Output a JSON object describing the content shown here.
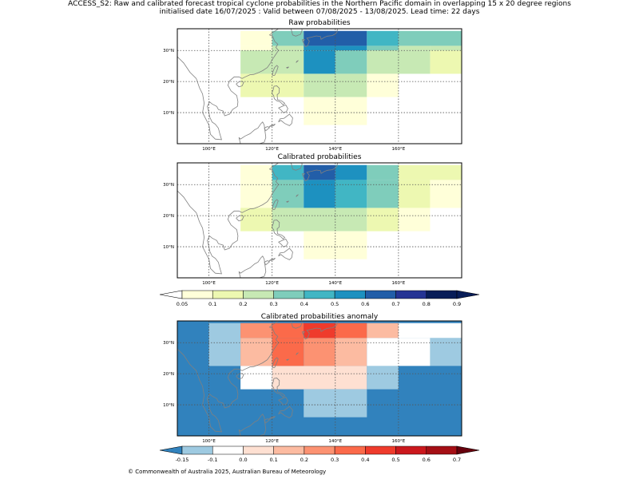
{
  "header": {
    "title_line1": "ACCESS_S2: Raw and calibrated forecast tropical cyclone probabilities in the Northern Pacific domain in overlapping 15 x 20 degree regions",
    "title_line2": "initialised date 16/07/2025 :  Valid between 07/08/2025 - 13/08/2025. Lead time: 22 days"
  },
  "footer": {
    "copyright": "© Commonwealth of Australia 2025, Australian Bureau of Meteorology"
  },
  "colors": {
    "prob_scale": [
      "#ffffff",
      "#ffffd9",
      "#edf8b1",
      "#c7e9b4",
      "#7fcdbb",
      "#41b6c4",
      "#1d91c0",
      "#225ea8",
      "#253494",
      "#081d58"
    ],
    "anom_scale": [
      "#3182bd",
      "#9ecae1",
      "#ffffff",
      "#fee0d2",
      "#fcbba1",
      "#fc9272",
      "#fb6a4a",
      "#ef3b2c",
      "#cb181d",
      "#a50f15",
      "#67000d"
    ],
    "coast": "#808080",
    "grid": "#555555"
  },
  "chart_data": [
    {
      "type": "heatmap",
      "title": "Raw probabilities",
      "x_ticks": [
        "100°E",
        "120°E",
        "140°E",
        "160°E"
      ],
      "y_ticks": [
        "30°N",
        "20°N",
        "10°N"
      ],
      "lon_range": [
        90,
        180
      ],
      "lat_range": [
        0,
        37
      ],
      "grid": true,
      "cells": [
        {
          "lon0": 110,
          "lon1": 120,
          "lat0": 36.3,
          "lat1": 31.5,
          "value": 0.07
        },
        {
          "lon0": 120,
          "lon1": 130,
          "lat0": 36.3,
          "lat1": 31.5,
          "value": 0.35
        },
        {
          "lon0": 130,
          "lon1": 150,
          "lat0": 36.3,
          "lat1": 31.5,
          "value": 0.65
        },
        {
          "lon0": 150,
          "lon1": 160,
          "lat0": 36.3,
          "lat1": 31.5,
          "value": 0.45
        },
        {
          "lon0": 160,
          "lon1": 180,
          "lat0": 36.3,
          "lat1": 31.5,
          "value": 0.35
        },
        {
          "lon0": 110,
          "lon1": 120,
          "lat0": 31.5,
          "lat1": 30.0,
          "value": 0.07
        },
        {
          "lon0": 120,
          "lon1": 130,
          "lat0": 31.5,
          "lat1": 30.0,
          "value": 0.25
        },
        {
          "lon0": 130,
          "lon1": 150,
          "lat0": 31.5,
          "lat1": 30.0,
          "value": 0.55
        },
        {
          "lon0": 150,
          "lon1": 160,
          "lat0": 31.5,
          "lat1": 30.0,
          "value": 0.35
        },
        {
          "lon0": 160,
          "lon1": 170,
          "lat0": 31.5,
          "lat1": 30.0,
          "value": 0.25
        },
        {
          "lon0": 170,
          "lon1": 180,
          "lat0": 31.5,
          "lat1": 30.0,
          "value": 0.25
        },
        {
          "lon0": 110,
          "lon1": 120,
          "lat0": 30.0,
          "lat1": 22.5,
          "value": 0.25
        },
        {
          "lon0": 120,
          "lon1": 130,
          "lat0": 30.0,
          "lat1": 22.5,
          "value": 0.25
        },
        {
          "lon0": 130,
          "lon1": 140,
          "lat0": 30.0,
          "lat1": 22.5,
          "value": 0.55
        },
        {
          "lon0": 140,
          "lon1": 150,
          "lat0": 30.0,
          "lat1": 22.5,
          "value": 0.35
        },
        {
          "lon0": 150,
          "lon1": 170,
          "lat0": 30.0,
          "lat1": 22.5,
          "value": 0.25
        },
        {
          "lon0": 170,
          "lon1": 180,
          "lat0": 30.0,
          "lat1": 22.5,
          "value": 0.15
        },
        {
          "lon0": 110,
          "lon1": 130,
          "lat0": 22.5,
          "lat1": 15.0,
          "value": 0.15
        },
        {
          "lon0": 130,
          "lon1": 150,
          "lat0": 22.5,
          "lat1": 15.0,
          "value": 0.25
        },
        {
          "lon0": 150,
          "lon1": 160,
          "lat0": 22.5,
          "lat1": 15.0,
          "value": 0.07
        },
        {
          "lon0": 130,
          "lon1": 150,
          "lat0": 15.0,
          "lat1": 6.0,
          "value": 0.07
        }
      ]
    },
    {
      "type": "heatmap",
      "title": "Calibrated probabilities",
      "x_ticks": [
        "100°E",
        "120°E",
        "140°E",
        "160°E"
      ],
      "y_ticks": [
        "30°N",
        "20°N",
        "10°N"
      ],
      "lon_range": [
        90,
        180
      ],
      "lat_range": [
        0,
        37
      ],
      "grid": true,
      "cells": [
        {
          "lon0": 110,
          "lon1": 120,
          "lat0": 36.3,
          "lat1": 31.5,
          "value": 0.07
        },
        {
          "lon0": 120,
          "lon1": 130,
          "lat0": 36.3,
          "lat1": 31.5,
          "value": 0.45
        },
        {
          "lon0": 130,
          "lon1": 140,
          "lat0": 36.3,
          "lat1": 31.5,
          "value": 0.65
        },
        {
          "lon0": 140,
          "lon1": 150,
          "lat0": 36.3,
          "lat1": 31.5,
          "value": 0.55
        },
        {
          "lon0": 150,
          "lon1": 160,
          "lat0": 36.3,
          "lat1": 31.5,
          "value": 0.35
        },
        {
          "lon0": 160,
          "lon1": 180,
          "lat0": 36.3,
          "lat1": 31.5,
          "value": 0.15
        },
        {
          "lon0": 110,
          "lon1": 120,
          "lat0": 31.5,
          "lat1": 22.5,
          "value": 0.07
        },
        {
          "lon0": 120,
          "lon1": 130,
          "lat0": 31.5,
          "lat1": 22.5,
          "value": 0.35
        },
        {
          "lon0": 130,
          "lon1": 140,
          "lat0": 31.5,
          "lat1": 22.5,
          "value": 0.55
        },
        {
          "lon0": 140,
          "lon1": 150,
          "lat0": 31.5,
          "lat1": 22.5,
          "value": 0.45
        },
        {
          "lon0": 150,
          "lon1": 160,
          "lat0": 31.5,
          "lat1": 22.5,
          "value": 0.35
        },
        {
          "lon0": 160,
          "lon1": 170,
          "lat0": 31.5,
          "lat1": 22.5,
          "value": 0.15
        },
        {
          "lon0": 170,
          "lon1": 180,
          "lat0": 31.5,
          "lat1": 22.5,
          "value": 0.07
        },
        {
          "lon0": 110,
          "lon1": 120,
          "lat0": 22.5,
          "lat1": 15.0,
          "value": 0.15
        },
        {
          "lon0": 120,
          "lon1": 150,
          "lat0": 22.5,
          "lat1": 15.0,
          "value": 0.25
        },
        {
          "lon0": 150,
          "lon1": 160,
          "lat0": 22.5,
          "lat1": 15.0,
          "value": 0.15
        },
        {
          "lon0": 160,
          "lon1": 170,
          "lat0": 22.5,
          "lat1": 15.0,
          "value": 0.07
        },
        {
          "lon0": 130,
          "lon1": 150,
          "lat0": 15.0,
          "lat1": 6.0,
          "value": 0.07
        }
      ]
    },
    {
      "type": "heatmap",
      "title": "Calibrated probabilities anomaly",
      "x_ticks": [
        "100°E",
        "120°E",
        "140°E",
        "160°E"
      ],
      "y_ticks": [
        "30°N",
        "20°N",
        "10°N"
      ],
      "lon_range": [
        90,
        180
      ],
      "lat_range": [
        0,
        37
      ],
      "grid": true,
      "background_value": -0.2,
      "cells": [
        {
          "lon0": 100,
          "lon1": 110,
          "lat0": 36.3,
          "lat1": 22.5,
          "value": -0.1
        },
        {
          "lon0": 110,
          "lon1": 120,
          "lat0": 36.3,
          "lat1": 31.5,
          "value": 0.25
        },
        {
          "lon0": 120,
          "lon1": 130,
          "lat0": 36.3,
          "lat1": 31.5,
          "value": 0.35
        },
        {
          "lon0": 130,
          "lon1": 140,
          "lat0": 36.3,
          "lat1": 31.5,
          "value": 0.45
        },
        {
          "lon0": 140,
          "lon1": 150,
          "lat0": 36.3,
          "lat1": 31.5,
          "value": 0.35
        },
        {
          "lon0": 150,
          "lon1": 160,
          "lat0": 36.3,
          "lat1": 31.5,
          "value": 0.15
        },
        {
          "lon0": 160,
          "lon1": 180,
          "lat0": 36.3,
          "lat1": 31.5,
          "value": 0.0
        },
        {
          "lon0": 110,
          "lon1": 120,
          "lat0": 31.5,
          "lat1": 22.5,
          "value": 0.15
        },
        {
          "lon0": 120,
          "lon1": 130,
          "lat0": 31.5,
          "lat1": 22.5,
          "value": 0.35
        },
        {
          "lon0": 130,
          "lon1": 140,
          "lat0": 31.5,
          "lat1": 22.5,
          "value": 0.25
        },
        {
          "lon0": 140,
          "lon1": 150,
          "lat0": 31.5,
          "lat1": 22.5,
          "value": 0.15
        },
        {
          "lon0": 150,
          "lon1": 170,
          "lat0": 31.5,
          "lat1": 22.5,
          "value": 0.0
        },
        {
          "lon0": 170,
          "lon1": 180,
          "lat0": 31.5,
          "lat1": 22.5,
          "value": -0.1
        },
        {
          "lon0": 110,
          "lon1": 120,
          "lat0": 22.5,
          "lat1": 15.0,
          "value": 0.0
        },
        {
          "lon0": 120,
          "lon1": 150,
          "lat0": 22.5,
          "lat1": 15.0,
          "value": 0.05
        },
        {
          "lon0": 150,
          "lon1": 160,
          "lat0": 22.5,
          "lat1": 15.0,
          "value": -0.1
        },
        {
          "lon0": 160,
          "lon1": 180,
          "lat0": 22.5,
          "lat1": 15.0,
          "value": -0.2
        },
        {
          "lon0": 130,
          "lon1": 150,
          "lat0": 15.0,
          "lat1": 6.0,
          "value": -0.1
        }
      ]
    }
  ],
  "colorbar_prob": {
    "ticks": [
      "0.05",
      "0.1",
      "0.2",
      "0.3",
      "0.4",
      "0.5",
      "0.6",
      "0.7",
      "0.8",
      "0.9"
    ],
    "extend": "both"
  },
  "colorbar_anom": {
    "ticks": [
      "-0.15",
      "-0.1",
      "0.0",
      "0.1",
      "0.2",
      "0.3",
      "0.4",
      "0.5",
      "0.6",
      "0.7"
    ],
    "extend": "both"
  }
}
